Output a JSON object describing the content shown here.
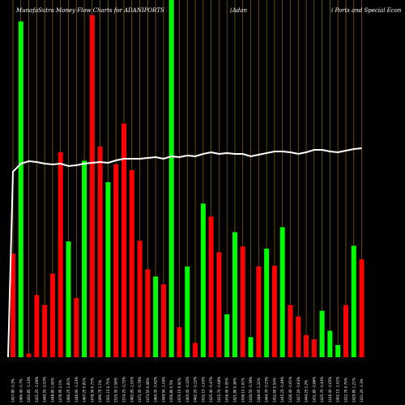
{
  "chart_data": {
    "type": "bar",
    "title_segments": [
      "MunafaSutra  Money Flow  Charts for ADANIPORTS",
      "(Adan",
      "i  Ports and Special Econ"
    ],
    "categories": [
      "1457.80 -0.3%",
      "1460.40 -0.7%",
      "1452.85 -1.13%",
      "1431.25 -1.06%",
      "1440.35 -0.53%",
      "1448.80 1.05%",
      "1476.95 2.1%",
      "1460.25 1.81%",
      "1446.90 -1.23%",
      "1467.25 0.81%",
      "1478.30 0.73%",
      "1490.75 1.1%",
      "1501.15 0.75%",
      "1525.35 1.59%",
      "1514.25 -0.72%",
      "1483.95 -2.01%",
      "1472.35 -0.78%",
      "1473.55 0.08%",
      "1464.35 -0.62%",
      "1449.50 -1.04%",
      "1456.80 0.5%",
      "1470.15 0.92%",
      "1465.45 -0.32%",
      "1462.20 -0.22%",
      "1432.15 -2.05%",
      "1425.40 -0.47%",
      "1415.70 -0.68%",
      "1416.45 0.05%",
      "1421.80 0.38%",
      "1436.10 1.01%",
      "1430.55 -0.39%",
      "1448.05 1.22%",
      "1444.70 -0.23%",
      "1452.40 0.53%",
      "1445.25 -0.49%",
      "1436.40 -0.61%",
      "1427.20 -0.64%",
      "1444.25 1.2%",
      "1431.85 -0.86%",
      "1425.70 -0.43%",
      "1416.40 -0.65%",
      "1402.15 -1.01%",
      "1412.70 0.75%",
      "1429.85 1.21%",
      "1411.20 -1.3%"
    ],
    "colors": [
      "red",
      "green",
      "red",
      "red",
      "red",
      "red",
      "red",
      "green",
      "red",
      "green",
      "red",
      "red",
      "green",
      "red",
      "red",
      "red",
      "red",
      "red",
      "green",
      "red",
      "green",
      "red",
      "green",
      "red",
      "green",
      "red",
      "red",
      "green",
      "green",
      "red",
      "green",
      "red",
      "green",
      "red",
      "green",
      "red",
      "red",
      "red",
      "red",
      "green",
      "green",
      "green",
      "red",
      "green",
      "red"
    ],
    "values": [
      145,
      470,
      5,
      87,
      73,
      117,
      287,
      162,
      83,
      275,
      479,
      295,
      245,
      270,
      327,
      262,
      163,
      123,
      113,
      102,
      500,
      42,
      127,
      20,
      215,
      197,
      147,
      60,
      175,
      155,
      28,
      127,
      152,
      128,
      182,
      73,
      57,
      31,
      25,
      65,
      37,
      17,
      73,
      156,
      137
    ],
    "tall_bars": [
      1,
      10,
      20
    ],
    "line": [
      {
        "i": 0,
        "y": 212
      },
      {
        "i": 1,
        "y": 202
      },
      {
        "i": 2,
        "y": 199
      },
      {
        "i": 3,
        "y": 200
      },
      {
        "i": 4,
        "y": 202
      },
      {
        "i": 5,
        "y": 203
      },
      {
        "i": 6,
        "y": 202
      },
      {
        "i": 7,
        "y": 205
      },
      {
        "i": 8,
        "y": 204
      },
      {
        "i": 9,
        "y": 202
      },
      {
        "i": 10,
        "y": 201
      },
      {
        "i": 11,
        "y": 200
      },
      {
        "i": 12,
        "y": 201
      },
      {
        "i": 13,
        "y": 198
      },
      {
        "i": 14,
        "y": 196
      },
      {
        "i": 15,
        "y": 196
      },
      {
        "i": 16,
        "y": 196
      },
      {
        "i": 17,
        "y": 195
      },
      {
        "i": 18,
        "y": 194
      },
      {
        "i": 19,
        "y": 196
      },
      {
        "i": 20,
        "y": 193
      },
      {
        "i": 21,
        "y": 194
      },
      {
        "i": 22,
        "y": 192
      },
      {
        "i": 23,
        "y": 193
      },
      {
        "i": 24,
        "y": 190
      },
      {
        "i": 25,
        "y": 188
      },
      {
        "i": 26,
        "y": 190
      },
      {
        "i": 27,
        "y": 189
      },
      {
        "i": 28,
        "y": 190
      },
      {
        "i": 29,
        "y": 190
      },
      {
        "i": 30,
        "y": 193
      },
      {
        "i": 31,
        "y": 191
      },
      {
        "i": 32,
        "y": 189
      },
      {
        "i": 33,
        "y": 187
      },
      {
        "i": 34,
        "y": 187
      },
      {
        "i": 35,
        "y": 188
      },
      {
        "i": 36,
        "y": 190
      },
      {
        "i": 37,
        "y": 188
      },
      {
        "i": 38,
        "y": 185
      },
      {
        "i": 39,
        "y": 185
      },
      {
        "i": 40,
        "y": 187
      },
      {
        "i": 41,
        "y": 188
      },
      {
        "i": 42,
        "y": 186
      },
      {
        "i": 43,
        "y": 184
      },
      {
        "i": 44,
        "y": 183
      }
    ],
    "ylim": [
      0,
      500
    ],
    "grid": "vertical",
    "palette": {
      "up": "#00ff00",
      "down": "#ff0000",
      "line": "#ffffff",
      "grid": "#b8860b",
      "background": "#000000"
    }
  }
}
